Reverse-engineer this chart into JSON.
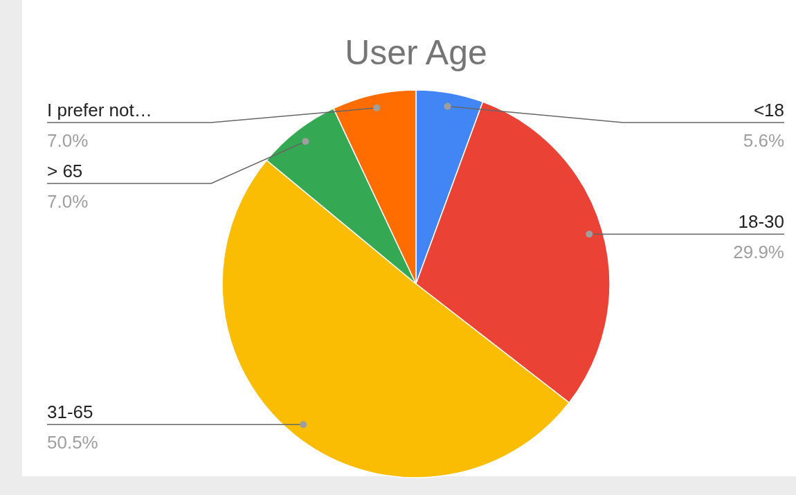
{
  "chart_data": {
    "type": "pie",
    "title": "User Age",
    "categories": [
      "<18",
      "18-30",
      "31-65",
      "> 65",
      "I prefer not…"
    ],
    "values": [
      5.6,
      29.9,
      50.5,
      7.0,
      7.0
    ],
    "colors": [
      "#4285f4",
      "#ea4335",
      "#fbbc04",
      "#34a853",
      "#ff6d01"
    ],
    "value_labels": [
      "5.6%",
      "29.9%",
      "50.5%",
      "7.0%",
      "7.0%"
    ]
  }
}
